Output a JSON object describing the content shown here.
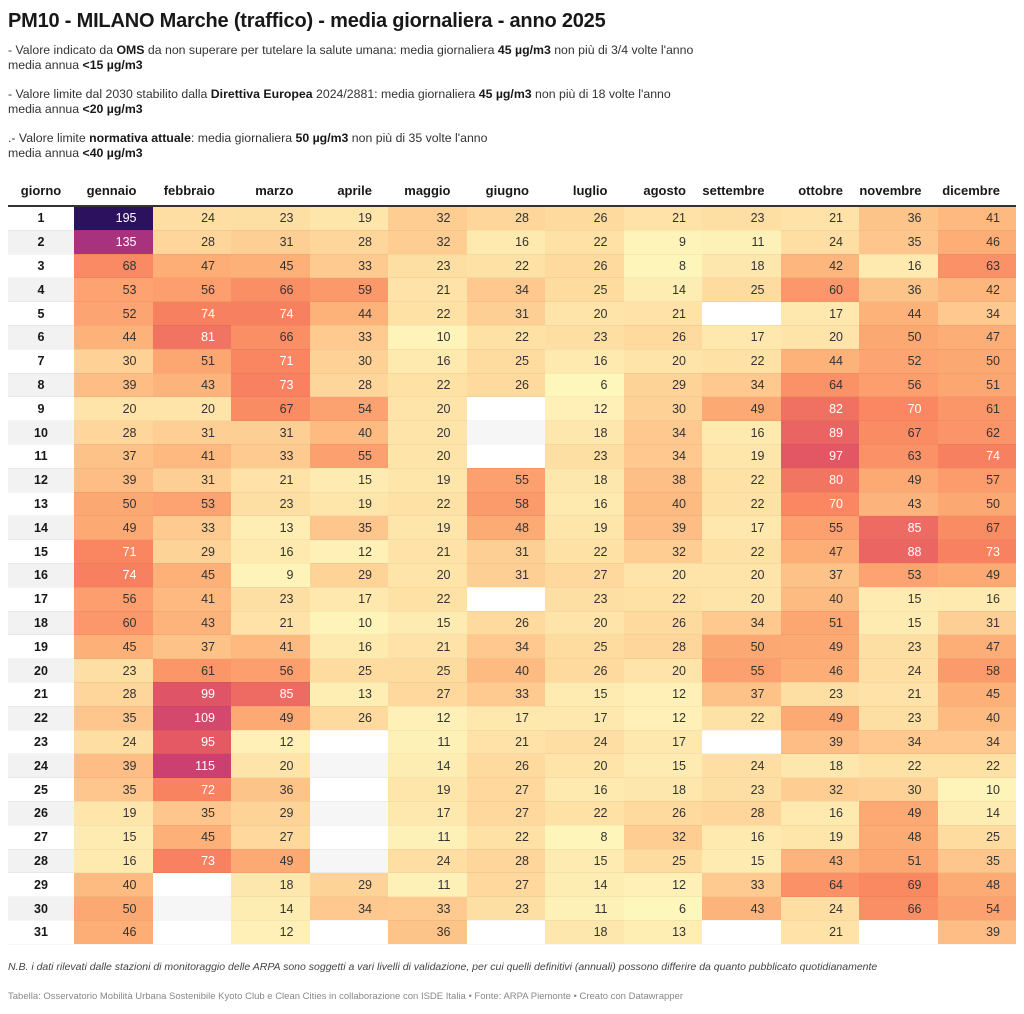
{
  "title": "PM10 - MILANO Marche (traffico) - media giornaliera - anno 2025",
  "description": [
    {
      "parts": [
        [
          "- Valore indicato da ",
          false
        ],
        [
          "OMS",
          true
        ],
        [
          " da non superare per tutelare la salute umana: media giornaliera ",
          false
        ],
        [
          "45 µg/m3",
          true
        ],
        [
          " non più di 3/4 volte l'anno",
          false
        ]
      ],
      "line2": [
        [
          "media annua ",
          false
        ],
        [
          "<15 µg/m3",
          true
        ]
      ]
    },
    {
      "parts": [
        [
          "- Valore limite dal 2030 stabilito dalla ",
          false
        ],
        [
          "Direttiva Europea",
          true
        ],
        [
          " 2024/2881: media giornaliera ",
          false
        ],
        [
          "45 µg/m3",
          true
        ],
        [
          " non più di 18 volte l'anno",
          false
        ]
      ],
      "line2": [
        [
          "media annua ",
          false
        ],
        [
          "<20 µg/m3",
          true
        ]
      ]
    },
    {
      "parts": [
        [
          ".- Valore limite ",
          false
        ],
        [
          "normativa attuale",
          true
        ],
        [
          ": media giornaliera ",
          false
        ],
        [
          "50 µg/m3",
          true
        ],
        [
          " non più di 35 volte l'anno",
          false
        ]
      ],
      "line2": [
        [
          "media annua ",
          false
        ],
        [
          "<40 µg/m3",
          true
        ]
      ]
    }
  ],
  "note": "N.B. i dati rilevati dalle stazioni di monitoraggio delle ARPA sono soggetti a vari livelli di validazione, per cui quelli definitivi (annuali) possono differire da quanto pubblicato quotidianamente",
  "source": "Tabella: Osservatorio Mobilità Urbana Sostenibile Kyoto Club e Clean Cities in collaborazione con ISDE Italia • Fonte: ARPA Piemonte • Creato con Datawrapper",
  "chart_data": {
    "type": "heatmap",
    "title": "PM10 - MILANO Marche (traffico) - media giornaliera - anno 2025",
    "row_header": "giorno",
    "columns": [
      "gennaio",
      "febbraio",
      "marzo",
      "aprile",
      "maggio",
      "giugno",
      "luglio",
      "agosto",
      "settembre",
      "ottobre",
      "novembre",
      "dicembre"
    ],
    "rows": [
      "1",
      "2",
      "3",
      "4",
      "5",
      "6",
      "7",
      "8",
      "9",
      "10",
      "11",
      "12",
      "13",
      "14",
      "15",
      "16",
      "17",
      "18",
      "19",
      "20",
      "21",
      "22",
      "23",
      "24",
      "25",
      "26",
      "27",
      "28",
      "29",
      "30",
      "31"
    ],
    "unit": "µg/m3",
    "color_scale": {
      "low": "#fcfdbf",
      "mid": "#fc8961",
      "high": "#2c115f",
      "range": [
        0,
        195
      ]
    },
    "values": [
      [
        195,
        24,
        23,
        19,
        32,
        28,
        26,
        21,
        23,
        21,
        36,
        41
      ],
      [
        135,
        28,
        31,
        28,
        32,
        16,
        22,
        9,
        11,
        24,
        35,
        46
      ],
      [
        68,
        47,
        45,
        33,
        23,
        22,
        26,
        8,
        18,
        42,
        16,
        63
      ],
      [
        53,
        56,
        66,
        59,
        21,
        34,
        25,
        14,
        25,
        60,
        36,
        42
      ],
      [
        52,
        74,
        74,
        44,
        22,
        31,
        20,
        21,
        null,
        17,
        44,
        34
      ],
      [
        44,
        81,
        66,
        33,
        10,
        22,
        23,
        26,
        17,
        20,
        50,
        47
      ],
      [
        30,
        51,
        71,
        30,
        16,
        25,
        16,
        20,
        22,
        44,
        52,
        50
      ],
      [
        39,
        43,
        73,
        28,
        22,
        26,
        6,
        29,
        34,
        64,
        56,
        51
      ],
      [
        20,
        20,
        67,
        54,
        20,
        null,
        12,
        30,
        49,
        82,
        70,
        61
      ],
      [
        28,
        31,
        31,
        40,
        20,
        null,
        18,
        34,
        16,
        89,
        67,
        62
      ],
      [
        37,
        41,
        33,
        55,
        20,
        null,
        23,
        34,
        19,
        97,
        63,
        74
      ],
      [
        39,
        31,
        21,
        15,
        19,
        55,
        18,
        38,
        22,
        80,
        49,
        57
      ],
      [
        50,
        53,
        23,
        19,
        22,
        58,
        16,
        40,
        22,
        70,
        43,
        50
      ],
      [
        49,
        33,
        13,
        35,
        19,
        48,
        19,
        39,
        17,
        55,
        85,
        67
      ],
      [
        71,
        29,
        16,
        12,
        21,
        31,
        22,
        32,
        22,
        47,
        88,
        73
      ],
      [
        74,
        45,
        9,
        29,
        20,
        31,
        27,
        20,
        20,
        37,
        53,
        49
      ],
      [
        56,
        41,
        23,
        17,
        22,
        null,
        23,
        22,
        20,
        40,
        15,
        16
      ],
      [
        60,
        43,
        21,
        10,
        15,
        26,
        20,
        26,
        34,
        51,
        15,
        31
      ],
      [
        45,
        37,
        41,
        16,
        21,
        34,
        25,
        28,
        50,
        49,
        23,
        47
      ],
      [
        23,
        61,
        56,
        25,
        25,
        40,
        26,
        20,
        55,
        46,
        24,
        58
      ],
      [
        28,
        99,
        85,
        13,
        27,
        33,
        15,
        12,
        37,
        23,
        21,
        45
      ],
      [
        35,
        109,
        49,
        26,
        12,
        17,
        17,
        12,
        22,
        49,
        23,
        40
      ],
      [
        24,
        95,
        12,
        null,
        11,
        21,
        24,
        17,
        null,
        39,
        34,
        34
      ],
      [
        39,
        115,
        20,
        null,
        14,
        26,
        20,
        15,
        24,
        18,
        22,
        22
      ],
      [
        35,
        72,
        36,
        null,
        19,
        27,
        16,
        18,
        23,
        32,
        30,
        10
      ],
      [
        19,
        35,
        29,
        null,
        17,
        27,
        22,
        26,
        28,
        16,
        49,
        14
      ],
      [
        15,
        45,
        27,
        null,
        11,
        22,
        8,
        32,
        16,
        19,
        48,
        25
      ],
      [
        16,
        73,
        49,
        null,
        24,
        28,
        15,
        25,
        15,
        43,
        51,
        35
      ],
      [
        40,
        null,
        18,
        29,
        11,
        27,
        14,
        12,
        33,
        64,
        69,
        48
      ],
      [
        50,
        null,
        14,
        34,
        33,
        23,
        11,
        6,
        43,
        24,
        66,
        54
      ],
      [
        46,
        null,
        12,
        null,
        36,
        null,
        18,
        13,
        null,
        21,
        null,
        39
      ]
    ]
  }
}
